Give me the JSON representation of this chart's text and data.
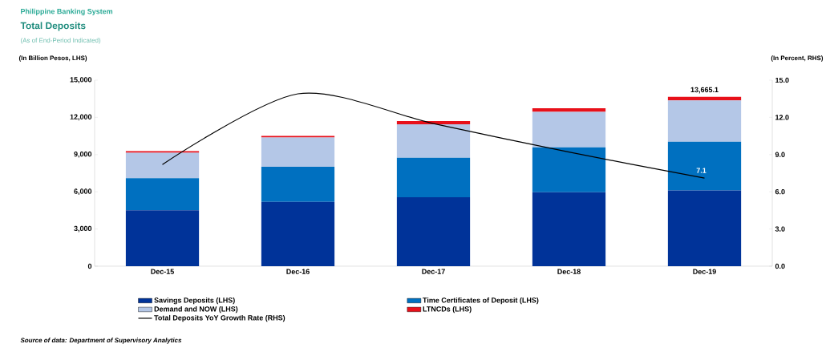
{
  "chart_data": {
    "type": "bar",
    "title": "Total Deposits",
    "subtitle": "(As of End-Period Indicated)",
    "annotations": [
      "Philippine Banking System",
      "Source of data: Department of Supervisory Analytics"
    ],
    "ylabel": "(In Billion Pesos, LHS)",
    "y2label": "(In Percent, RHS)",
    "categories": [
      "Dec-15",
      "Dec-16",
      "Dec-17",
      "Dec-18",
      "Dec-19"
    ],
    "stacked": true,
    "legend": "bottom",
    "series": [
      {
        "name": "Savings Deposits (LHS)",
        "color": "#003399",
        "values": [
          4510,
          5180,
          5560,
          5960,
          6110
        ]
      },
      {
        "name": "Time Certificates of Deposit (LHS)",
        "color": "#0070c0",
        "values": [
          2590,
          2840,
          3180,
          3620,
          3920
        ]
      },
      {
        "name": "Demand and NOW (LHS)",
        "color": "#b4c7e7",
        "values": [
          2040,
          2360,
          2710,
          2870,
          3330
        ]
      },
      {
        "name": "LTNCDs (LHS)",
        "color": "#e8101a",
        "values": [
          130,
          130,
          250,
          290,
          305
        ]
      },
      {
        "name": "Total Deposits YoY Growth Rate (RHS)",
        "color": "#000000",
        "type": "line",
        "axis": "y2",
        "values": [
          8.2,
          13.9,
          11.5,
          9.2,
          7.1
        ],
        "value_labels": [
          null,
          null,
          null,
          null,
          "7.1"
        ]
      }
    ],
    "totals": [
      null,
      null,
      null,
      null,
      "13,665.1"
    ],
    "ylim": [
      0,
      15000
    ],
    "yticks": [
      {
        "value": 0,
        "label": "0"
      },
      {
        "value": 3000,
        "label": "3,000"
      },
      {
        "value": 6000,
        "label": "6,000"
      },
      {
        "value": 9000,
        "label": "9,000"
      },
      {
        "value": 12000,
        "label": "12,000"
      },
      {
        "value": 15000,
        "label": "15,000"
      }
    ],
    "y2lim": [
      0,
      15
    ],
    "y2ticks": [
      {
        "value": 0,
        "label": "0.0"
      },
      {
        "value": 3,
        "label": "3.0"
      },
      {
        "value": 6,
        "label": "6.0"
      },
      {
        "value": 9,
        "label": "9.0"
      },
      {
        "value": 12,
        "label": "12.0"
      },
      {
        "value": 15,
        "label": "15.0"
      }
    ]
  }
}
